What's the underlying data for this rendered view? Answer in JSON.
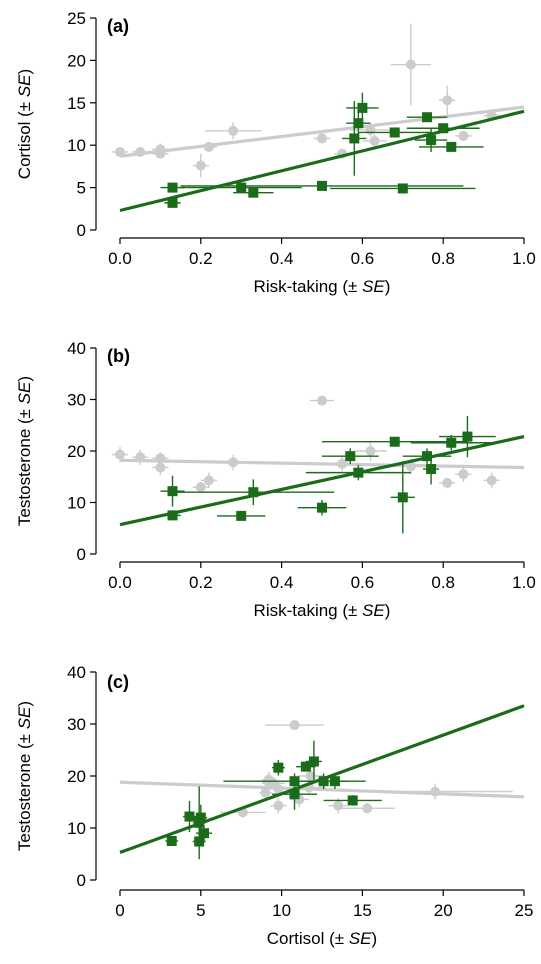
{
  "colors": {
    "grey": "#cccccc",
    "green": "#1a6b1a",
    "axis": "#000000"
  },
  "chart_data": [
    {
      "type": "scatter",
      "panel_label": "(a)",
      "xlabel": "Risk-taking (± ",
      "xlabel_italic": "SE",
      "xlabel_end": ")",
      "ylabel": "Cortisol (± ",
      "ylabel_italic": "SE",
      "ylabel_end": ")",
      "xlim": [
        0,
        1.0
      ],
      "ylim": [
        0,
        25
      ],
      "xticks": [
        "0.0",
        "0.2",
        "0.4",
        "0.6",
        "0.8",
        "1.0"
      ],
      "xtick_values": [
        0,
        0.2,
        0.4,
        0.6,
        0.8,
        1.0
      ],
      "yticks": [
        "0",
        "5",
        "10",
        "15",
        "20",
        "25"
      ],
      "ytick_values": [
        0,
        5,
        10,
        15,
        20,
        25
      ],
      "series": [
        {
          "color": "grey",
          "marker": "circle",
          "points": [
            {
              "x": 0.0,
              "y": 9.2,
              "xe": 0.02,
              "ye": 0.4
            },
            {
              "x": 0.05,
              "y": 9.2,
              "xe": 0.02,
              "ye": 0.4
            },
            {
              "x": 0.1,
              "y": 9.5,
              "xe": 0.02,
              "ye": 0.7
            },
            {
              "x": 0.1,
              "y": 9.0,
              "xe": 0.02,
              "ye": 0.4
            },
            {
              "x": 0.2,
              "y": 7.6,
              "xe": 0.02,
              "ye": 1.4
            },
            {
              "x": 0.22,
              "y": 9.8,
              "xe": 0.02,
              "ye": 0.5
            },
            {
              "x": 0.28,
              "y": 11.7,
              "xe": 0.07,
              "ye": 1.0
            },
            {
              "x": 0.55,
              "y": 9.0,
              "xe": 0.02,
              "ye": 0.5
            },
            {
              "x": 0.62,
              "y": 11.8,
              "xe": 0.05,
              "ye": 0.8
            },
            {
              "x": 0.63,
              "y": 10.5,
              "xe": 0.03,
              "ye": 0.8
            },
            {
              "x": 0.72,
              "y": 19.5,
              "xe": 0.05,
              "ye": 4.8
            },
            {
              "x": 0.81,
              "y": 15.3,
              "xe": 0.02,
              "ye": 1.7
            },
            {
              "x": 0.85,
              "y": 11.1,
              "xe": 0.02,
              "ye": 0.6
            },
            {
              "x": 0.92,
              "y": 13.5,
              "xe": 0.02,
              "ye": 0.6
            },
            {
              "x": 0.5,
              "y": 10.8,
              "xe": 0.02,
              "ye": 0.6
            }
          ],
          "fit": [
            [
              0.0,
              8.7
            ],
            [
              1.0,
              14.5
            ]
          ]
        },
        {
          "color": "green",
          "marker": "square",
          "points": [
            {
              "x": 0.13,
              "y": 5.0,
              "xe": 0.03,
              "ye": 0.4
            },
            {
              "x": 0.13,
              "y": 3.2,
              "xe": 0.02,
              "ye": 0.4
            },
            {
              "x": 0.3,
              "y": 5.0,
              "xe": 0.15,
              "ye": 0.4
            },
            {
              "x": 0.33,
              "y": 4.4,
              "xe": 0.05,
              "ye": 0.4
            },
            {
              "x": 0.5,
              "y": 5.2,
              "xe": 0.35,
              "ye": 0.5
            },
            {
              "x": 0.58,
              "y": 10.8,
              "xe": 0.03,
              "ye": 4.4
            },
            {
              "x": 0.59,
              "y": 12.6,
              "xe": 0.03,
              "ye": 1.5
            },
            {
              "x": 0.6,
              "y": 14.4,
              "xe": 0.04,
              "ye": 1.8
            },
            {
              "x": 0.68,
              "y": 11.5,
              "xe": 0.09,
              "ye": 0.6
            },
            {
              "x": 0.7,
              "y": 4.9,
              "xe": 0.18,
              "ye": 0.4
            },
            {
              "x": 0.76,
              "y": 13.3,
              "xe": 0.05,
              "ye": 0.5
            },
            {
              "x": 0.77,
              "y": 10.6,
              "xe": 0.04,
              "ye": 1.4
            },
            {
              "x": 0.8,
              "y": 12.0,
              "xe": 0.09,
              "ye": 0.5
            },
            {
              "x": 0.82,
              "y": 9.8,
              "xe": 0.08,
              "ye": 0.4
            }
          ],
          "fit": [
            [
              0.0,
              2.3
            ],
            [
              1.0,
              14.0
            ]
          ]
        }
      ]
    },
    {
      "type": "scatter",
      "panel_label": "(b)",
      "xlabel": "Risk-taking (± ",
      "xlabel_italic": "SE",
      "xlabel_end": ")",
      "ylabel": "Testosterone (± ",
      "ylabel_italic": "SE",
      "ylabel_end": ")",
      "xlim": [
        0,
        1.0
      ],
      "ylim": [
        0,
        40
      ],
      "xticks": [
        "0.0",
        "0.2",
        "0.4",
        "0.6",
        "0.8",
        "1.0"
      ],
      "xtick_values": [
        0,
        0.2,
        0.4,
        0.6,
        0.8,
        1.0
      ],
      "yticks": [
        "0",
        "10",
        "20",
        "30",
        "40"
      ],
      "ytick_values": [
        0,
        10,
        20,
        30,
        40
      ],
      "series": [
        {
          "color": "grey",
          "marker": "circle",
          "points": [
            {
              "x": 0.0,
              "y": 19.3,
              "xe": 0.02,
              "ye": 1.5
            },
            {
              "x": 0.05,
              "y": 18.8,
              "xe": 0.02,
              "ye": 1.5
            },
            {
              "x": 0.1,
              "y": 18.6,
              "xe": 0.02,
              "ye": 1.2
            },
            {
              "x": 0.1,
              "y": 16.8,
              "xe": 0.02,
              "ye": 1.5
            },
            {
              "x": 0.2,
              "y": 13.0,
              "xe": 0.02,
              "ye": 1.0
            },
            {
              "x": 0.22,
              "y": 14.3,
              "xe": 0.02,
              "ye": 1.5
            },
            {
              "x": 0.28,
              "y": 17.8,
              "xe": 0.05,
              "ye": 1.5
            },
            {
              "x": 0.5,
              "y": 29.8,
              "xe": 0.03,
              "ye": 0.8
            },
            {
              "x": 0.55,
              "y": 17.5,
              "xe": 0.03,
              "ye": 1.5
            },
            {
              "x": 0.62,
              "y": 20.0,
              "xe": 0.04,
              "ye": 2.0
            },
            {
              "x": 0.72,
              "y": 17.0,
              "xe": 0.05,
              "ye": 1.5
            },
            {
              "x": 0.81,
              "y": 13.8,
              "xe": 0.02,
              "ye": 1.0
            },
            {
              "x": 0.85,
              "y": 15.5,
              "xe": 0.02,
              "ye": 1.5
            },
            {
              "x": 0.92,
              "y": 14.3,
              "xe": 0.02,
              "ye": 1.5
            }
          ],
          "fit": [
            [
              0.0,
              18.2
            ],
            [
              1.0,
              16.8
            ]
          ]
        },
        {
          "color": "green",
          "marker": "square",
          "points": [
            {
              "x": 0.13,
              "y": 12.2,
              "xe": 0.03,
              "ye": 3.0
            },
            {
              "x": 0.13,
              "y": 7.5,
              "xe": 0.02,
              "ye": 0.8
            },
            {
              "x": 0.3,
              "y": 7.4,
              "xe": 0.06,
              "ye": 0.6
            },
            {
              "x": 0.33,
              "y": 12.0,
              "xe": 0.2,
              "ye": 2.5
            },
            {
              "x": 0.5,
              "y": 9.0,
              "xe": 0.06,
              "ye": 1.5
            },
            {
              "x": 0.57,
              "y": 19.0,
              "xe": 0.07,
              "ye": 1.5
            },
            {
              "x": 0.59,
              "y": 15.8,
              "xe": 0.13,
              "ye": 1.5
            },
            {
              "x": 0.68,
              "y": 21.8,
              "xe": 0.18,
              "ye": 0.8
            },
            {
              "x": 0.7,
              "y": 11.0,
              "xe": 0.03,
              "ye": 7.0
            },
            {
              "x": 0.76,
              "y": 19.0,
              "xe": 0.06,
              "ye": 1.5
            },
            {
              "x": 0.77,
              "y": 16.5,
              "xe": 0.02,
              "ye": 3.0
            },
            {
              "x": 0.82,
              "y": 21.6,
              "xe": 0.1,
              "ye": 1.5
            },
            {
              "x": 0.86,
              "y": 22.8,
              "xe": 0.07,
              "ye": 4.0
            }
          ],
          "fit": [
            [
              0.0,
              5.7
            ],
            [
              1.0,
              22.8
            ]
          ]
        }
      ]
    },
    {
      "type": "scatter",
      "panel_label": "(c)",
      "xlabel": "Cortisol (± ",
      "xlabel_italic": "SE",
      "xlabel_end": ")",
      "ylabel": "Testosterone (± ",
      "ylabel_italic": "SE",
      "ylabel_end": ")",
      "xlim": [
        0,
        25
      ],
      "ylim": [
        0,
        40
      ],
      "xticks": [
        "0",
        "5",
        "10",
        "15",
        "20",
        "25"
      ],
      "xtick_values": [
        0,
        5,
        10,
        15,
        20,
        25
      ],
      "yticks": [
        "0",
        "10",
        "20",
        "30",
        "40"
      ],
      "ytick_values": [
        0,
        10,
        20,
        30,
        40
      ],
      "series": [
        {
          "color": "grey",
          "marker": "circle",
          "points": [
            {
              "x": 9.2,
              "y": 19.3,
              "xe": 0.4,
              "ye": 1.5
            },
            {
              "x": 9.2,
              "y": 18.8,
              "xe": 0.4,
              "ye": 1.5
            },
            {
              "x": 9.5,
              "y": 18.6,
              "xe": 0.7,
              "ye": 1.2
            },
            {
              "x": 9.0,
              "y": 16.8,
              "xe": 0.4,
              "ye": 1.5
            },
            {
              "x": 7.6,
              "y": 13.0,
              "xe": 1.4,
              "ye": 1.0
            },
            {
              "x": 9.8,
              "y": 14.3,
              "xe": 0.5,
              "ye": 1.5
            },
            {
              "x": 11.7,
              "y": 17.8,
              "xe": 1.0,
              "ye": 1.5
            },
            {
              "x": 10.8,
              "y": 29.8,
              "xe": 1.8,
              "ye": 0.8
            },
            {
              "x": 9.8,
              "y": 17.5,
              "xe": 0.5,
              "ye": 1.5
            },
            {
              "x": 11.8,
              "y": 20.0,
              "xe": 0.8,
              "ye": 2.0
            },
            {
              "x": 19.5,
              "y": 17.0,
              "xe": 4.8,
              "ye": 1.5
            },
            {
              "x": 15.3,
              "y": 13.8,
              "xe": 1.7,
              "ye": 1.0
            },
            {
              "x": 11.1,
              "y": 15.5,
              "xe": 0.6,
              "ye": 1.5
            },
            {
              "x": 13.5,
              "y": 14.3,
              "xe": 0.6,
              "ye": 1.5
            }
          ],
          "fit": [
            [
              0.0,
              18.8
            ],
            [
              25.0,
              16.0
            ]
          ]
        },
        {
          "color": "green",
          "marker": "square",
          "points": [
            {
              "x": 3.2,
              "y": 7.5,
              "xe": 0.4,
              "ye": 0.8
            },
            {
              "x": 4.3,
              "y": 12.2,
              "xe": 0.4,
              "ye": 3.0
            },
            {
              "x": 5.0,
              "y": 12.0,
              "xe": 0.4,
              "ye": 2.5
            },
            {
              "x": 4.9,
              "y": 7.4,
              "xe": 0.4,
              "ye": 0.6
            },
            {
              "x": 5.2,
              "y": 9.0,
              "xe": 0.5,
              "ye": 1.5
            },
            {
              "x": 4.9,
              "y": 11.0,
              "xe": 0.4,
              "ye": 7.0
            },
            {
              "x": 10.8,
              "y": 16.5,
              "xe": 1.4,
              "ye": 3.0
            },
            {
              "x": 10.8,
              "y": 19.0,
              "xe": 4.4,
              "ye": 1.5
            },
            {
              "x": 12.6,
              "y": 19.0,
              "xe": 1.5,
              "ye": 1.5
            },
            {
              "x": 14.4,
              "y": 15.3,
              "xe": 1.8,
              "ye": 1.0
            },
            {
              "x": 11.5,
              "y": 21.8,
              "xe": 0.6,
              "ye": 0.8
            },
            {
              "x": 9.8,
              "y": 21.6,
              "xe": 0.4,
              "ye": 1.5
            },
            {
              "x": 12.0,
              "y": 22.8,
              "xe": 0.5,
              "ye": 4.0
            },
            {
              "x": 13.3,
              "y": 19.0,
              "xe": 0.5,
              "ye": 1.5
            }
          ],
          "fit": [
            [
              0.0,
              5.3
            ],
            [
              25.0,
              33.5
            ]
          ]
        }
      ]
    }
  ]
}
